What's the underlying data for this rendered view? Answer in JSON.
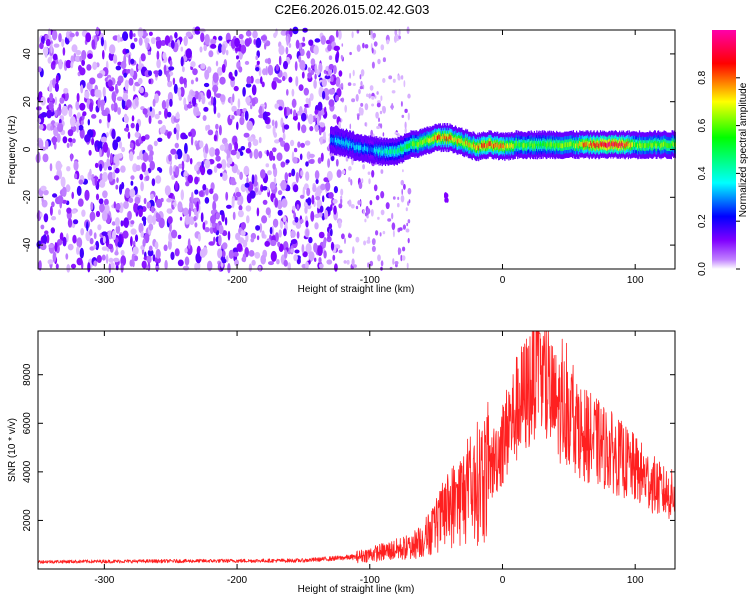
{
  "title": "C2E6.2026.015.02.42.G03",
  "chart_data": [
    {
      "type": "heatmap",
      "title": "C2E6.2026.015.02.42.G03",
      "xlabel": "Height of straight line (km)",
      "ylabel": "Frequency (Hz)",
      "xlim": [
        -350,
        130
      ],
      "ylim": [
        -50,
        50
      ],
      "xticks": [
        -300,
        -200,
        -100,
        0,
        100
      ],
      "yticks": [
        -40,
        -20,
        0,
        20,
        40
      ],
      "colorbar": {
        "label": "Normalized spectral amplitude",
        "range": [
          0,
          1
        ],
        "ticks": [
          "0.0",
          "0.2",
          "0.4",
          "0.6",
          "0.8"
        ],
        "colors": [
          "#ffffff",
          "#8000ff",
          "#0000ff",
          "#00ffff",
          "#00ff00",
          "#ffff00",
          "#ff0000",
          "#ff00aa"
        ]
      },
      "noise_region": {
        "x_start": -350,
        "x_end": -122,
        "freq_range": [
          -50,
          50
        ],
        "amplitude": 0.1
      },
      "sparse_noise_region": {
        "x_start": -122,
        "x_end": -70,
        "amplitude": 0.08
      },
      "band": {
        "x": [
          -130,
          -120,
          -110,
          -100,
          -90,
          -80,
          -70,
          -60,
          -50,
          -40,
          -30,
          -20,
          -10,
          0,
          10,
          30,
          50,
          70,
          80,
          90,
          100,
          130
        ],
        "center_freq": [
          4,
          3,
          1,
          0,
          -1,
          -1,
          2,
          3,
          5,
          5,
          3,
          1,
          2,
          1,
          2,
          2,
          2,
          2,
          2,
          2,
          2,
          2
        ],
        "amplitude": [
          0.3,
          0.35,
          0.35,
          0.3,
          0.4,
          0.45,
          0.55,
          0.6,
          0.8,
          0.75,
          0.7,
          0.75,
          0.8,
          0.8,
          0.6,
          0.55,
          0.6,
          0.85,
          0.9,
          0.85,
          0.6,
          0.6
        ]
      }
    },
    {
      "type": "line",
      "xlabel": "Height of straight line (km)",
      "ylabel": "SNR (10 * v/v)",
      "xlim": [
        -350,
        130
      ],
      "ylim": [
        0,
        9800
      ],
      "xticks": [
        -300,
        -200,
        -100,
        0,
        100
      ],
      "yticks": [
        2000,
        4000,
        6000,
        8000
      ],
      "series": [
        {
          "name": "SNR",
          "color": "#ff2020",
          "envelope_x": [
            -350,
            -150,
            -110,
            -90,
            -70,
            -60,
            -50,
            -40,
            -30,
            -20,
            -10,
            0,
            10,
            20,
            25,
            30,
            40,
            50,
            60,
            80,
            100,
            120,
            130
          ],
          "envelope_y": [
            300,
            350,
            500,
            700,
            900,
            1200,
            1800,
            2500,
            3000,
            3500,
            4000,
            5200,
            6500,
            7400,
            8400,
            7700,
            6700,
            6500,
            5600,
            4900,
            4100,
            3200,
            3000
          ],
          "peak_annotated": {
            "x": 28,
            "y": 9700
          }
        }
      ]
    }
  ]
}
